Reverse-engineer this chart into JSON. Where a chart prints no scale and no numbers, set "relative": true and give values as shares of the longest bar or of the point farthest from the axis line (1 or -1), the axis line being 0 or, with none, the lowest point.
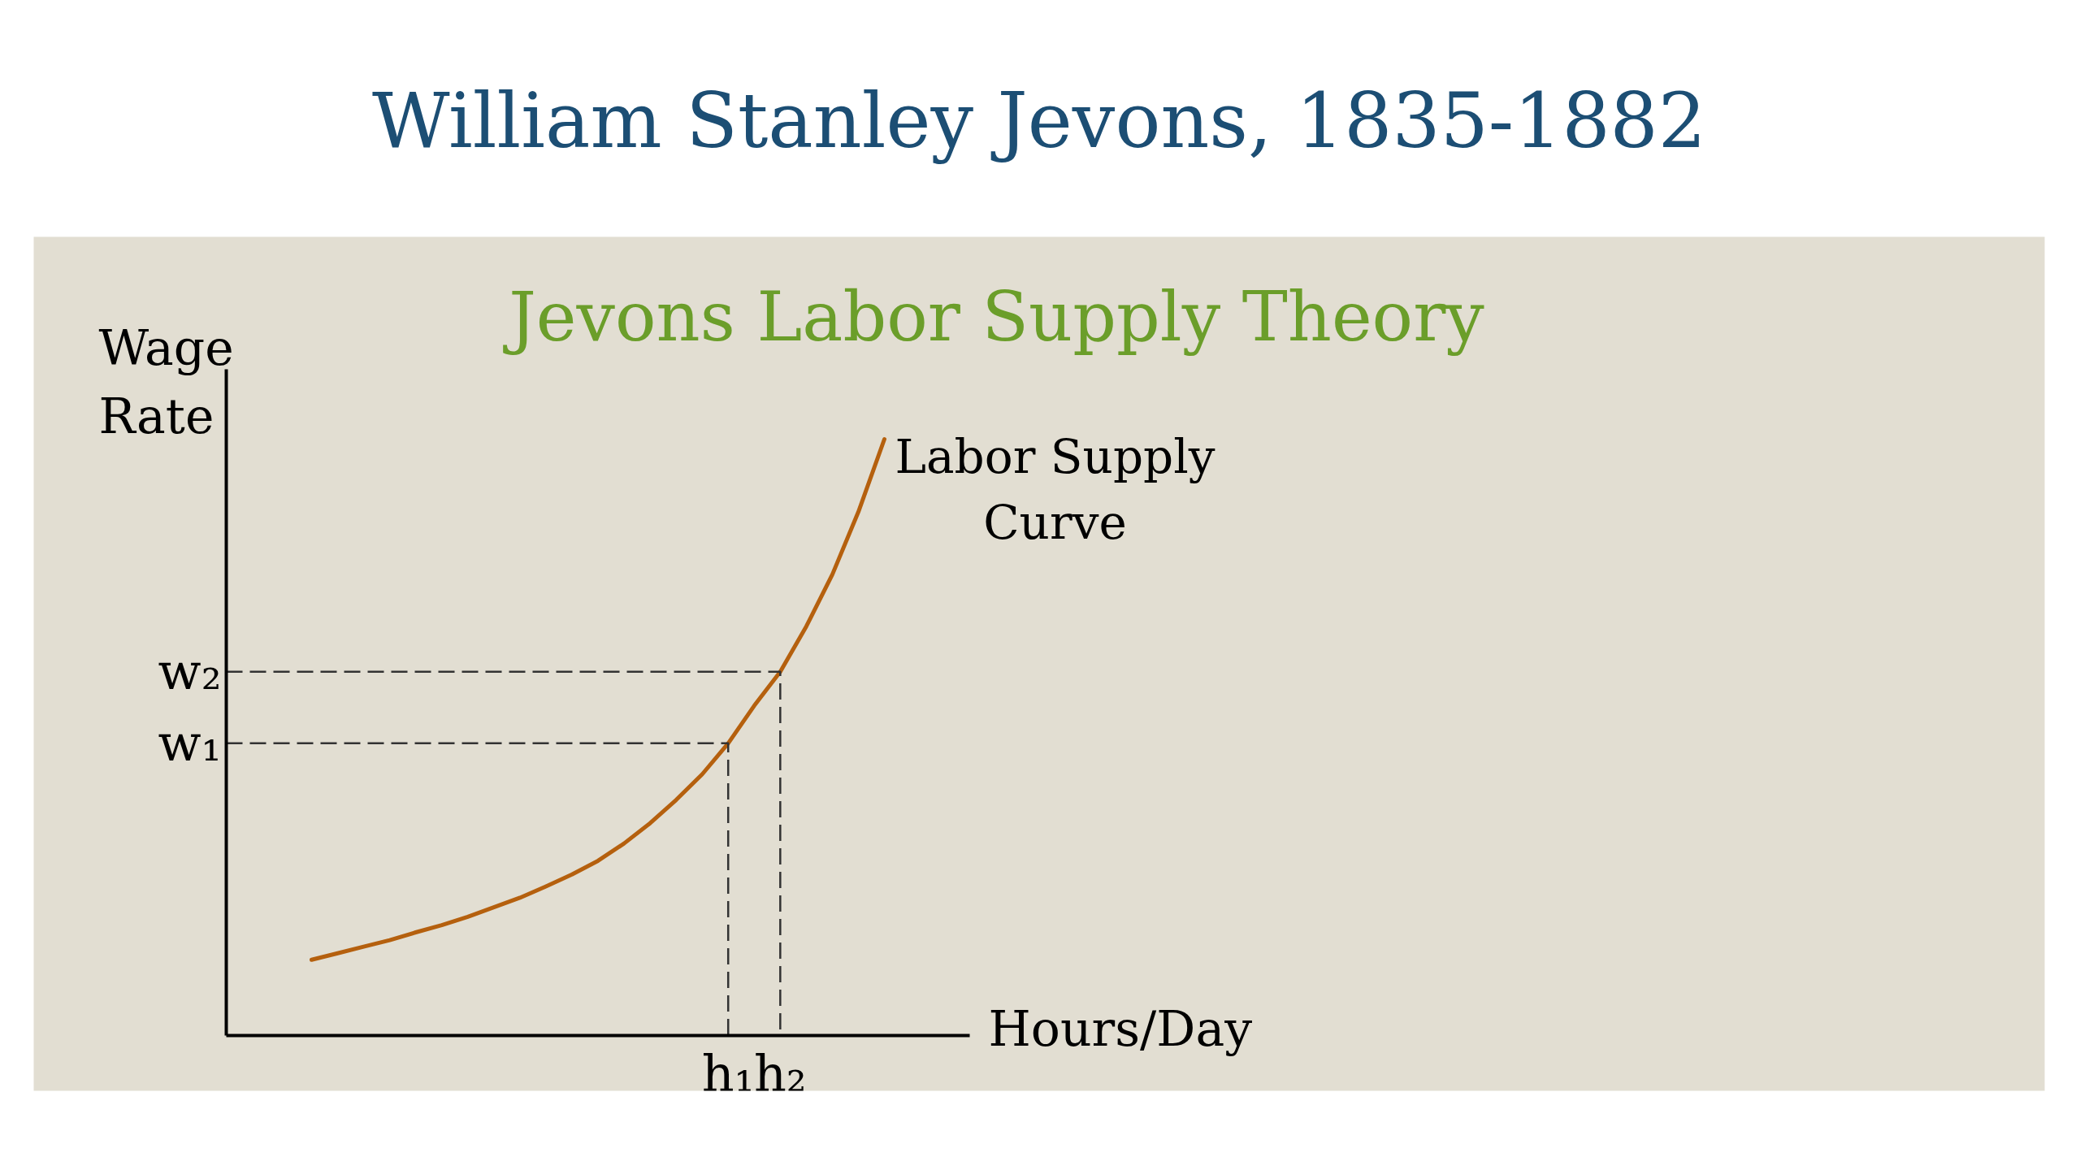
{
  "chart_data": {
    "type": "line",
    "title": "William Stanley Jevons, 1835-1882",
    "subtitle": "Jevons Labor Supply Theory",
    "xlabel": "Hours/Day",
    "ylabel": "Wage Rate",
    "relative": true,
    "categories": [
      null,
      null,
      null,
      null,
      null,
      null,
      null,
      null,
      null,
      null,
      null,
      null,
      null,
      null,
      null,
      null,
      "h₁",
      null,
      "h₂",
      null,
      null,
      null,
      null
    ],
    "series": [
      {
        "name": "Labor Supply Curve",
        "color": "#b5600e",
        "values": [
          0.127,
          0.138,
          0.149,
          0.16,
          0.173,
          0.185,
          0.199,
          0.215,
          0.231,
          0.25,
          0.27,
          0.293,
          0.322,
          0.356,
          0.395,
          0.438,
          0.49,
          0.553,
          0.61,
          0.686,
          0.773,
          0.878,
          1.0
        ]
      }
    ],
    "ref_lines": [
      {
        "axis": "y",
        "value": 0.49,
        "label": "w₁",
        "color": "#333333",
        "line_style": "dashed"
      },
      {
        "axis": "y",
        "value": 0.61,
        "label": "w₂",
        "color": "#333333",
        "line_style": "dashed"
      }
    ]
  }
}
